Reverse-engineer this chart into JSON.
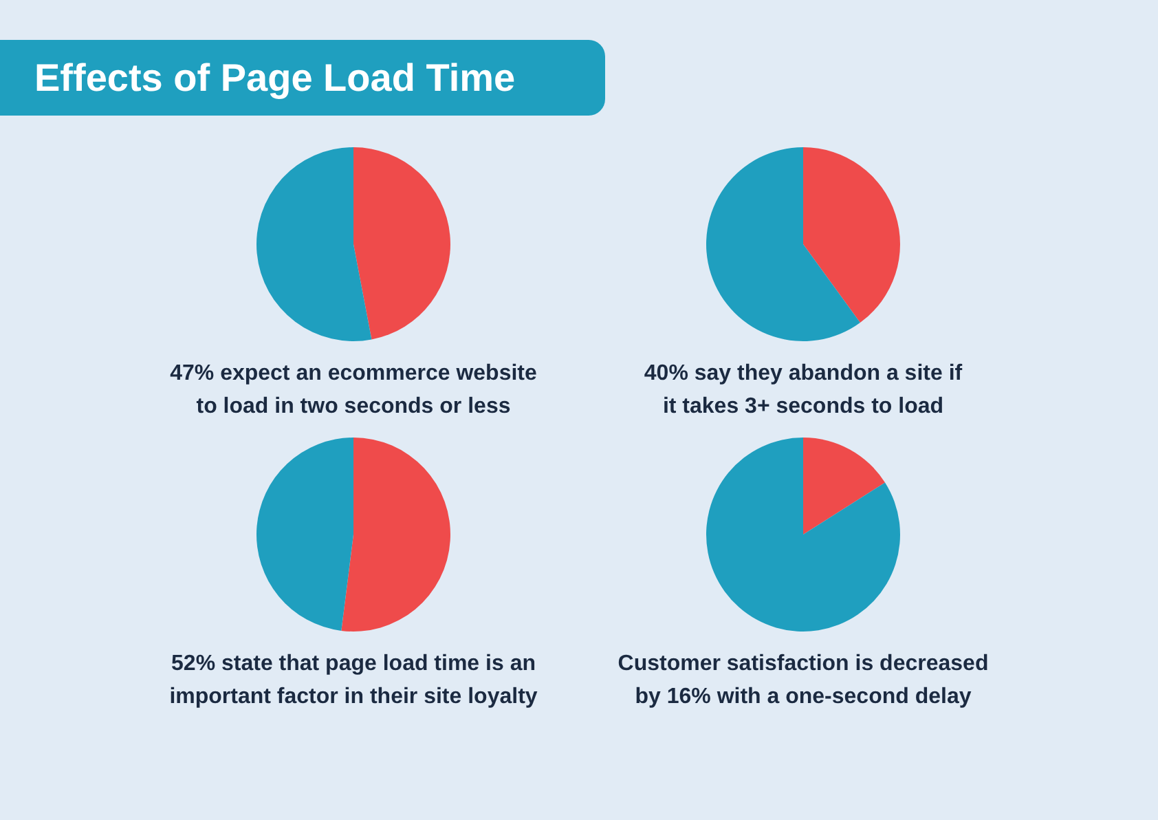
{
  "chart_data": [
    {
      "type": "pie",
      "title": "Effects of Page Load Time",
      "categories": [
        null,
        null
      ],
      "values": [
        47,
        53
      ],
      "colors": [
        "#ef4b4b",
        "#1f9fbf"
      ],
      "annotations": [
        "47% expect an ecommerce website\nto load in two seconds or less"
      ]
    },
    {
      "type": "pie",
      "categories": [
        null,
        null
      ],
      "values": [
        40,
        60
      ],
      "colors": [
        "#ef4b4b",
        "#1f9fbf"
      ],
      "annotations": [
        "40% say they abandon a site if\nit takes 3+ seconds to load"
      ]
    },
    {
      "type": "pie",
      "categories": [
        null,
        null
      ],
      "values": [
        52,
        48
      ],
      "colors": [
        "#ef4b4b",
        "#1f9fbf"
      ],
      "annotations": [
        "52% state that page load time is an\nimportant factor in their site loyalty"
      ]
    },
    {
      "type": "pie",
      "categories": [
        null,
        null
      ],
      "values": [
        16,
        84
      ],
      "colors": [
        "#ef4b4b",
        "#1f9fbf"
      ],
      "annotations": [
        "Customer satisfaction is decreased\nby 16% with a one-second delay"
      ]
    }
  ]
}
